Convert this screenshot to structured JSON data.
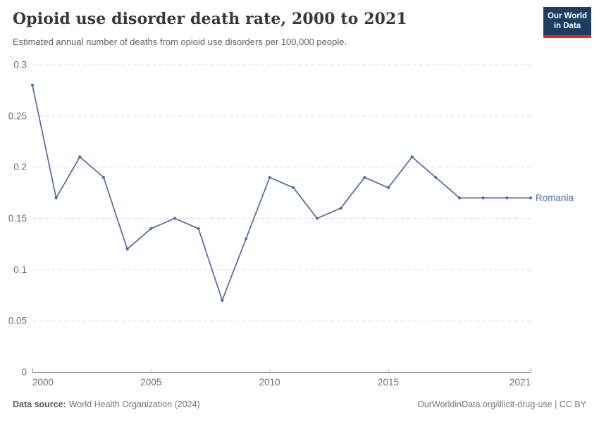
{
  "header": {
    "title": "Opioid use disorder death rate, 2000 to 2021",
    "subtitle": "Estimated annual number of deaths from opioid use disorders per 100,000 people."
  },
  "logo": {
    "line1": "Our World",
    "line2": "in Data",
    "bg_color": "#1D3D63",
    "accent_color": "#D12F3E"
  },
  "chart_data": {
    "type": "line",
    "title": "Opioid use disorder death rate, 2000 to 2021",
    "xlabel": "",
    "ylabel": "",
    "x": [
      2000,
      2001,
      2002,
      2003,
      2004,
      2005,
      2006,
      2007,
      2008,
      2009,
      2010,
      2011,
      2012,
      2013,
      2014,
      2015,
      2016,
      2017,
      2018,
      2019,
      2020,
      2021
    ],
    "series": [
      {
        "name": "Romania",
        "color": "#4C6CA4",
        "values": [
          0.28,
          0.17,
          0.21,
          0.19,
          0.12,
          0.14,
          0.15,
          0.14,
          0.07,
          0.13,
          0.19,
          0.18,
          0.15,
          0.16,
          0.19,
          0.18,
          0.21,
          0.19,
          0.17,
          0.17,
          0.17,
          0.17
        ]
      }
    ],
    "xlim": [
      2000,
      2021
    ],
    "ylim": [
      0,
      0.3
    ],
    "yticks": [
      0,
      0.05,
      0.1,
      0.15,
      0.2,
      0.25,
      0.3
    ],
    "ytick_labels": [
      "0",
      "0.05",
      "0.1",
      "0.15",
      "0.2",
      "0.25",
      "0.3"
    ],
    "xticks": [
      2000,
      2005,
      2010,
      2015,
      2021
    ],
    "xtick_labels": [
      "2000",
      "2005",
      "2010",
      "2015",
      "2021"
    ],
    "grid": "dashed-horizontal",
    "legend_position": "end-of-line"
  },
  "colors": {
    "line": "#4C6CA4",
    "axis": "#8E8E8E",
    "minor_tick": "#B5B5B5",
    "grid": "#DDDDDD",
    "tick_text": "#6E6E6E"
  },
  "footer": {
    "source_label": "Data source:",
    "source_value": "World Health Organization (2024)",
    "rights": "OurWorldinData.org/illicit-drug-use | CC BY"
  }
}
